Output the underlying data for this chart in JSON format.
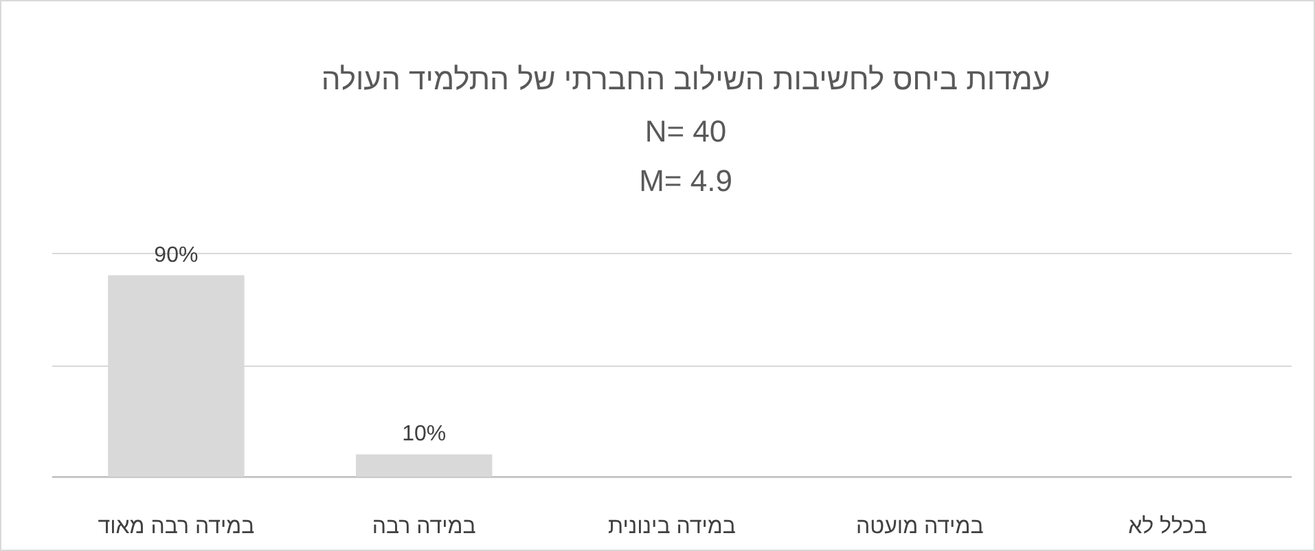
{
  "chart_data": {
    "type": "bar",
    "title": "עמדות ביחס לחשיבות השילוב החברתי של התלמיד העולה",
    "subtitle": "N= 40\nM= 4.9",
    "categories": [
      "במידה רבה מאוד",
      "במידה רבה",
      "במידה בינונית",
      "במידה מועטה",
      "בכלל לא"
    ],
    "values": [
      90,
      10,
      0,
      0,
      0
    ],
    "value_labels": [
      "90%",
      "10%",
      null,
      null,
      null
    ],
    "color": "#d9d9d9",
    "ylim": [
      0,
      100
    ],
    "yticks": [
      {
        "value": 0,
        "label": null
      },
      {
        "value": 50,
        "label": null
      },
      {
        "value": 100,
        "label": null
      }
    ],
    "tick_labels": "x",
    "grid": "y"
  }
}
